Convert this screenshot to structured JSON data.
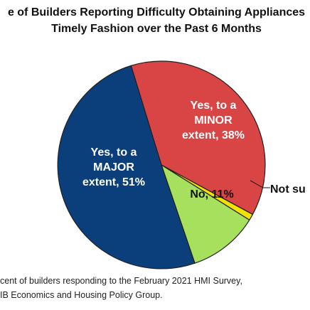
{
  "title": {
    "line1": "e of Builders Reporting Difficulty Obtaining Appliances",
    "line2": "Timely Fashion over the Past 6 Months"
  },
  "note": {
    "line1": "cent of builders responding to the February 2021 HMI Survey,",
    "line2": "IB Economics and Housing Policy Group."
  },
  "chart_data": {
    "type": "pie",
    "title": "e of Builders Reporting Difficulty Obtaining Appliances Timely Fashion over the Past 6 Months",
    "slices": [
      {
        "name": "Yes, to a MINOR extent",
        "value": 38,
        "color": "#d94545",
        "label_lines": [
          "Yes, to a",
          "MINOR",
          "extent, 38%"
        ],
        "label_color": "#ffffff"
      },
      {
        "name": "Not sure",
        "value": 1,
        "color": "#f2e200",
        "label_lines": [
          "Not su"
        ],
        "label_color": "#111111"
      },
      {
        "name": "No",
        "value": 11,
        "color": "#a6e05c",
        "label_lines": [
          "No, 11%"
        ],
        "label_color": "#111111"
      },
      {
        "name": "Yes, to a MAJOR extent",
        "value": 51,
        "color": "#0b3f7c",
        "label_lines": [
          "Yes, to a",
          "MAJOR",
          "extent, 51%"
        ],
        "label_color": "#ffffff"
      }
    ],
    "start_angle_deg": -17,
    "border_color": "#1f1f1f"
  }
}
